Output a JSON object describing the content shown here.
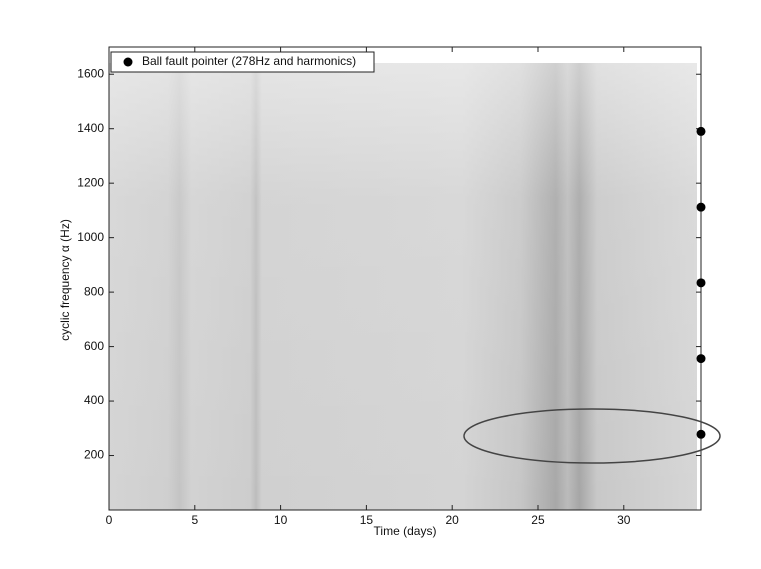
{
  "chart_data": {
    "type": "scatter",
    "xlabel": "Time (days)",
    "ylabel": "cyclic frequency α (Hz)",
    "series": [
      {
        "name": "Ball fault pointer (278Hz and harmonics)",
        "color": "#000000",
        "x": [
          34.5,
          34.5,
          34.5,
          34.5,
          34.5
        ],
        "values": [
          278,
          556,
          834,
          1112,
          1390
        ]
      }
    ],
    "xlim": [
      0,
      34.5
    ],
    "ylim": [
      0,
      1700
    ],
    "xticks": [
      0,
      5,
      10,
      15,
      20,
      25,
      30
    ],
    "yticks": [
      200,
      400,
      600,
      800,
      1000,
      1200,
      1400,
      1600
    ],
    "legend": "upper left"
  }
}
